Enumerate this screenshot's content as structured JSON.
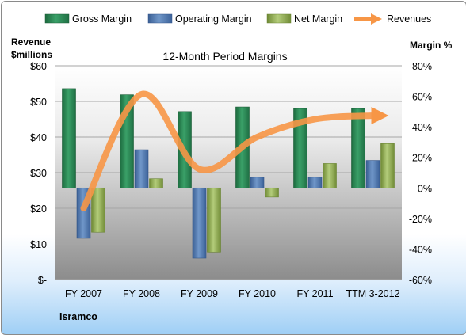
{
  "chart_data": {
    "type": "bar",
    "title": "12-Month Period Margins",
    "company": "Isramco",
    "categories": [
      "FY 2007",
      "FY 2008",
      "FY 2009",
      "FY 2010",
      "FY 2011",
      "TTM 3-2012"
    ],
    "y_left": {
      "label_line1": "Revenue",
      "label_line2": "$millions",
      "range": [
        0,
        60
      ],
      "ticks": [
        0,
        10,
        20,
        30,
        40,
        50,
        60
      ],
      "tick_labels": [
        "$-",
        "$10",
        "$20",
        "$30",
        "$40",
        "$50",
        "$60"
      ]
    },
    "y_right": {
      "label": "Margin %",
      "range": [
        -60,
        80
      ],
      "ticks": [
        -60,
        -40,
        -20,
        0,
        20,
        40,
        60,
        80
      ],
      "tick_labels": [
        "-60%",
        "-40%",
        "-20%",
        "0%",
        "20%",
        "40%",
        "60%",
        "80%"
      ]
    },
    "series": [
      {
        "name": "Gross Margin",
        "type": "bar",
        "axis": "right",
        "color": "#2e8b57",
        "values": [
          65,
          61,
          50,
          53,
          52,
          52
        ]
      },
      {
        "name": "Operating Margin",
        "type": "bar",
        "axis": "right",
        "color": "#4f81bd",
        "values": [
          -33,
          25,
          -46,
          7,
          7,
          18
        ]
      },
      {
        "name": "Net Margin",
        "type": "bar",
        "axis": "right",
        "color": "#9bbb59",
        "values": [
          -29,
          6,
          -42,
          -6,
          16,
          29
        ]
      },
      {
        "name": "Revenues",
        "type": "line",
        "axis": "left",
        "color": "#f79646",
        "values": [
          20,
          52,
          31,
          40,
          45,
          46
        ]
      }
    ],
    "legend_position": "top",
    "grid": true
  }
}
